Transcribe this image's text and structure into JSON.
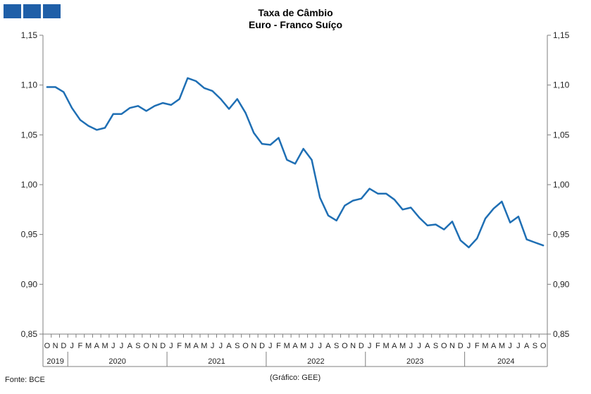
{
  "logo": {
    "icon": "logo-squares-icon",
    "color": "#1f5fa8"
  },
  "footer": {
    "source": "Fonte: BCE",
    "credit": "(Gráfico: GEE)"
  },
  "chart_data": {
    "type": "line",
    "title": "Taxa de Câmbio",
    "subtitle": "Euro - Franco Suíço",
    "xlabel": "",
    "ylabel": "",
    "ylim": [
      0.85,
      1.15
    ],
    "y_ticks": [
      "0,85",
      "0,90",
      "0,95",
      "1,00",
      "1,05",
      "1,10",
      "1,15"
    ],
    "grid": false,
    "legend": "none",
    "line_color": "#1f6fb4",
    "month_labels": [
      "O",
      "N",
      "D",
      "J",
      "F",
      "M",
      "A",
      "M",
      "J",
      "J",
      "A",
      "S",
      "O",
      "N",
      "D",
      "J",
      "F",
      "M",
      "A",
      "M",
      "J",
      "J",
      "A",
      "S",
      "O",
      "N",
      "D",
      "J",
      "F",
      "M",
      "A",
      "M",
      "J",
      "J",
      "A",
      "S",
      "O",
      "N",
      "D",
      "J",
      "F",
      "M",
      "A",
      "M",
      "J",
      "J",
      "A",
      "S",
      "O",
      "N",
      "D",
      "J",
      "F",
      "M",
      "A",
      "M",
      "J",
      "J",
      "A",
      "S",
      "O"
    ],
    "years": [
      {
        "label": "2019",
        "months": 3
      },
      {
        "label": "2020",
        "months": 12
      },
      {
        "label": "2021",
        "months": 12
      },
      {
        "label": "2022",
        "months": 12
      },
      {
        "label": "2023",
        "months": 12
      },
      {
        "label": "2024",
        "months": 10
      }
    ],
    "series": [
      {
        "values": [
          1.098,
          1.098,
          1.093,
          1.077,
          1.065,
          1.059,
          1.055,
          1.057,
          1.071,
          1.071,
          1.077,
          1.079,
          1.074,
          1.079,
          1.082,
          1.08,
          1.086,
          1.107,
          1.104,
          1.097,
          1.094,
          1.086,
          1.076,
          1.086,
          1.072,
          1.052,
          1.041,
          1.04,
          1.047,
          1.025,
          1.021,
          1.036,
          1.025,
          0.987,
          0.969,
          0.964,
          0.979,
          0.984,
          0.986,
          0.996,
          0.991,
          0.991,
          0.985,
          0.975,
          0.977,
          0.967,
          0.959,
          0.96,
          0.955,
          0.963,
          0.944,
          0.937,
          0.946,
          0.966,
          0.976,
          0.983,
          0.962,
          0.968,
          0.945,
          0.942,
          0.939
        ]
      }
    ]
  }
}
